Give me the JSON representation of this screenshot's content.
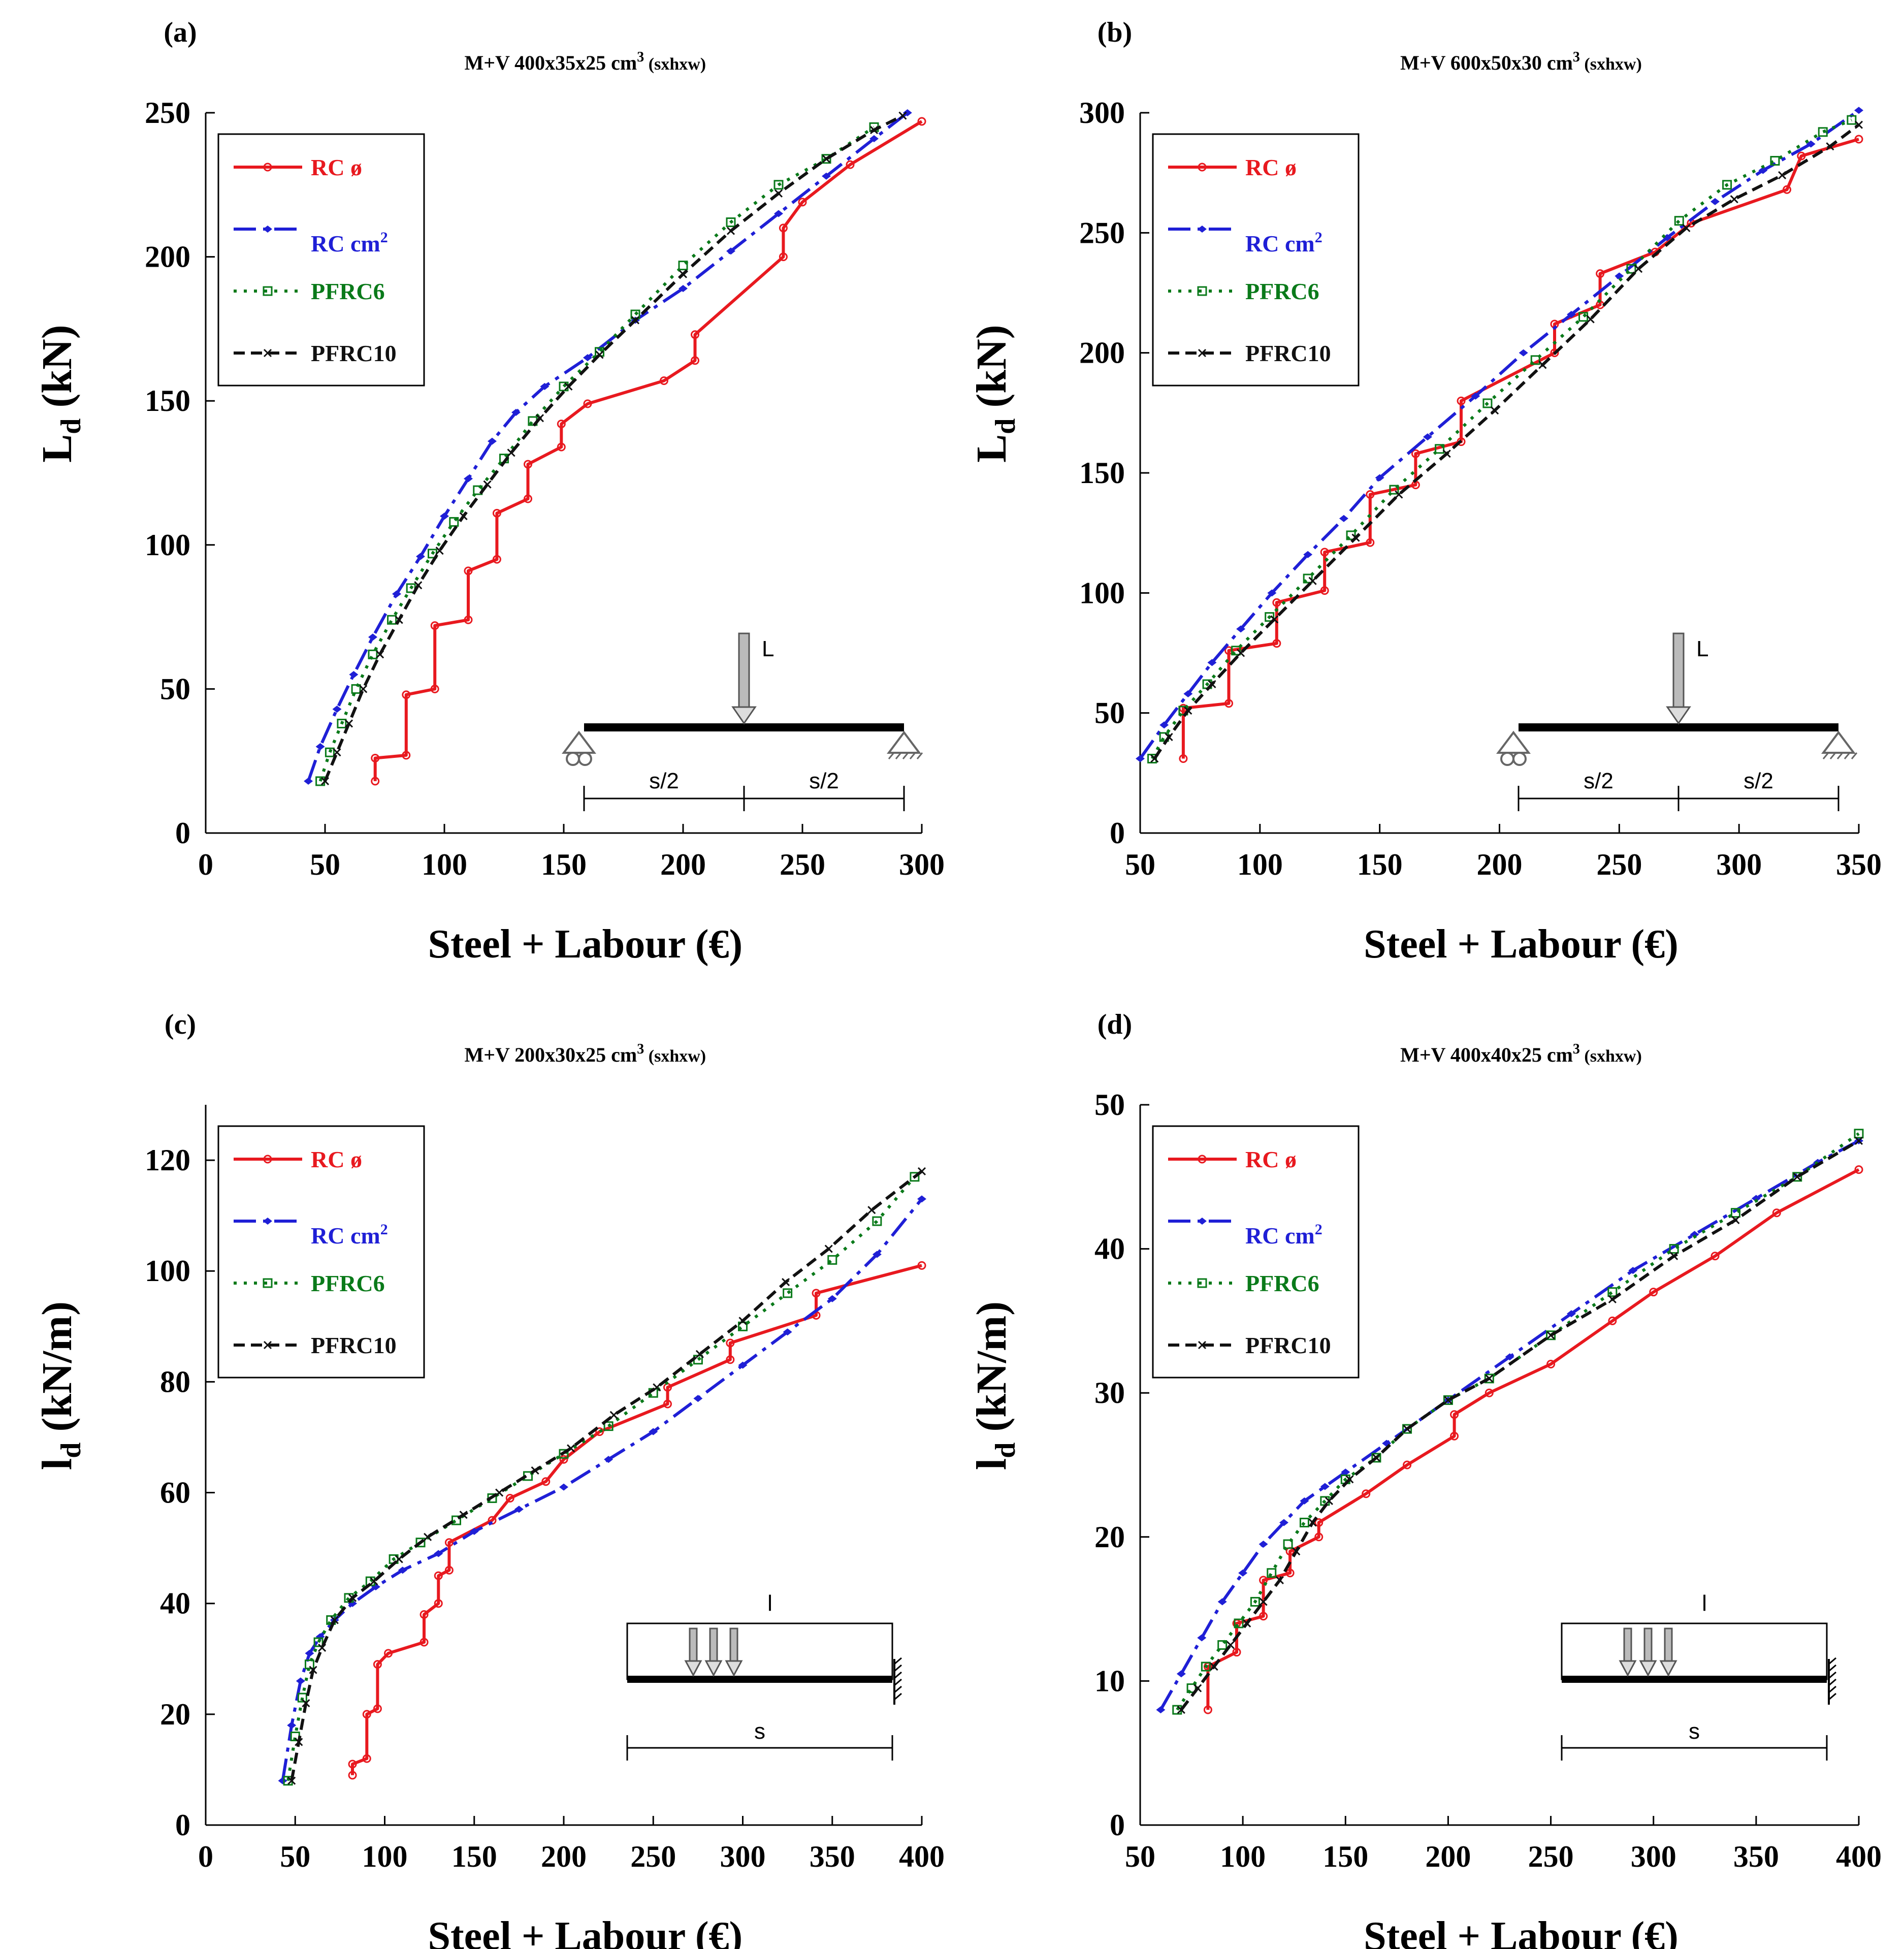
{
  "figure": {
    "x_axis_label": "Steel + Labour (€)",
    "legend_entries": [
      {
        "key": "rc_phi",
        "label": "RC ø",
        "color": "#e8191f",
        "dash": "solid",
        "marker": "circle"
      },
      {
        "key": "rc_cm2",
        "label": "RC cm²",
        "color": "#1f1fd6",
        "dash": "dashdot",
        "marker": "diamond"
      },
      {
        "key": "pfrc6",
        "label": "PFRC6",
        "color": "#0a7a1a",
        "dash": "dotted",
        "marker": "square"
      },
      {
        "key": "pfrc10",
        "label": "PFRC10",
        "color": "#111111",
        "dash": "dashed",
        "marker": "cross"
      }
    ],
    "scheme_labels": {
      "point_load": "L",
      "distributed_load": "l",
      "half_span": "s/2",
      "span": "s"
    }
  },
  "chart_data": [
    {
      "type": "line",
      "panel": "(a)",
      "title": "M+V 400x35x25 cm³ (sxhxw)",
      "xlabel": "Steel + Labour (€)",
      "ylabel": "Ld (kN)",
      "xlim": [
        0,
        300
      ],
      "ylim": [
        0,
        250
      ],
      "xticks": [
        0,
        50,
        100,
        150,
        200,
        250,
        300
      ],
      "yticks": [
        0,
        50,
        100,
        150,
        200,
        250
      ],
      "scheme": "simply_supported_point_load",
      "series": [
        {
          "name": "RC ø",
          "x": [
            71,
            71,
            84,
            84,
            96,
            96,
            110,
            110,
            122,
            122,
            135,
            135,
            149,
            149,
            160,
            192,
            205,
            205,
            242,
            242,
            250,
            270,
            300
          ],
          "y": [
            18,
            26,
            27,
            48,
            50,
            72,
            74,
            91,
            95,
            111,
            116,
            128,
            134,
            142,
            149,
            157,
            164,
            173,
            200,
            210,
            219,
            232,
            247
          ]
        },
        {
          "name": "RC cm²",
          "x": [
            43,
            48,
            55,
            62,
            70,
            80,
            90,
            100,
            110,
            120,
            130,
            142,
            160,
            180,
            200,
            220,
            240,
            260,
            280,
            294
          ],
          "y": [
            18,
            30,
            43,
            55,
            68,
            83,
            96,
            110,
            123,
            136,
            146,
            155,
            165,
            178,
            189,
            202,
            215,
            228,
            241,
            250
          ]
        },
        {
          "name": "PFRC6",
          "x": [
            48,
            52,
            57,
            63,
            70,
            78,
            86,
            95,
            104,
            114,
            125,
            137,
            150,
            165,
            180,
            200,
            220,
            240,
            260,
            280
          ],
          "y": [
            18,
            28,
            38,
            50,
            62,
            74,
            85,
            97,
            108,
            119,
            130,
            143,
            155,
            167,
            180,
            197,
            212,
            225,
            234,
            245
          ]
        },
        {
          "name": "PFRC10",
          "x": [
            50,
            55,
            60,
            66,
            73,
            81,
            89,
            98,
            108,
            118,
            128,
            140,
            152,
            165,
            180,
            200,
            220,
            240,
            260,
            280,
            292
          ],
          "y": [
            18,
            28,
            38,
            50,
            62,
            74,
            86,
            98,
            110,
            121,
            132,
            144,
            155,
            166,
            178,
            194,
            209,
            222,
            234,
            244,
            249
          ]
        }
      ]
    },
    {
      "type": "line",
      "panel": "(b)",
      "title": "M+V 600x50x30 cm³ (sxhxw)",
      "xlabel": "Steel + Labour (€)",
      "ylabel": "Ld (kN)",
      "xlim": [
        50,
        350
      ],
      "ylim": [
        0,
        300
      ],
      "xticks": [
        50,
        100,
        150,
        200,
        250,
        300,
        350
      ],
      "yticks": [
        0,
        50,
        100,
        150,
        200,
        250,
        300
      ],
      "scheme": "simply_supported_point_load",
      "series": [
        {
          "name": "RC ø",
          "x": [
            68,
            68,
            87,
            87,
            107,
            107,
            127,
            127,
            146,
            146,
            165,
            165,
            184,
            184,
            223,
            223,
            242,
            242,
            265,
            280,
            320,
            326,
            350
          ],
          "y": [
            31,
            52,
            54,
            76,
            79,
            96,
            101,
            117,
            121,
            141,
            145,
            158,
            163,
            180,
            200,
            212,
            220,
            233,
            242,
            254,
            268,
            282,
            289
          ]
        },
        {
          "name": "RC cm²",
          "x": [
            50,
            60,
            70,
            80,
            92,
            105,
            120,
            135,
            150,
            170,
            190,
            210,
            230,
            250,
            270,
            290,
            310,
            330,
            350
          ],
          "y": [
            31,
            45,
            58,
            71,
            85,
            100,
            116,
            131,
            148,
            165,
            182,
            200,
            216,
            232,
            248,
            263,
            276,
            287,
            301
          ]
        },
        {
          "name": "PFRC6",
          "x": [
            55,
            60,
            68,
            78,
            90,
            104,
            120,
            138,
            156,
            175,
            195,
            215,
            235,
            255,
            275,
            295,
            315,
            335,
            347
          ],
          "y": [
            31,
            40,
            51,
            62,
            76,
            90,
            106,
            124,
            143,
            160,
            179,
            197,
            215,
            235,
            255,
            270,
            280,
            292,
            297
          ]
        },
        {
          "name": "PFRC10",
          "x": [
            56,
            62,
            70,
            80,
            92,
            106,
            122,
            140,
            158,
            178,
            198,
            218,
            238,
            258,
            278,
            298,
            318,
            338,
            350
          ],
          "y": [
            31,
            40,
            51,
            62,
            75,
            89,
            105,
            123,
            141,
            158,
            176,
            195,
            214,
            235,
            252,
            264,
            274,
            286,
            295
          ]
        }
      ]
    },
    {
      "type": "line",
      "panel": "(c)",
      "title": "M+V 200x30x25 cm³ (sxhxw)",
      "xlabel": "Steel + Labour (€)",
      "ylabel": "ld (kN/m)",
      "xlim": [
        0,
        400
      ],
      "ylim": [
        0,
        130
      ],
      "xticks": [
        0,
        50,
        100,
        150,
        200,
        250,
        300,
        350,
        400
      ],
      "yticks": [
        0,
        20,
        40,
        60,
        80,
        100,
        120
      ],
      "scheme": "cantilever_distributed_load",
      "series": [
        {
          "name": "RC ø",
          "x": [
            82,
            82,
            90,
            90,
            96,
            96,
            102,
            122,
            122,
            130,
            130,
            136,
            136,
            160,
            170,
            190,
            200,
            220,
            258,
            258,
            293,
            293,
            341,
            341,
            400
          ],
          "y": [
            9,
            11,
            12,
            20,
            21,
            29,
            31,
            33,
            38,
            40,
            45,
            46,
            51,
            55,
            59,
            62,
            66,
            71,
            76,
            79,
            84,
            87,
            92,
            96,
            101
          ]
        },
        {
          "name": "RC cm²",
          "x": [
            43,
            48,
            53,
            58,
            64,
            72,
            82,
            95,
            110,
            130,
            150,
            175,
            200,
            225,
            250,
            275,
            300,
            325,
            350,
            375,
            400
          ],
          "y": [
            8,
            18,
            26,
            31,
            34,
            37,
            40,
            43,
            46,
            49,
            53,
            57,
            61,
            66,
            71,
            77,
            83,
            89,
            95,
            103,
            113
          ]
        },
        {
          "name": "PFRC6",
          "x": [
            46,
            50,
            54,
            58,
            63,
            70,
            80,
            92,
            105,
            120,
            140,
            160,
            180,
            200,
            225,
            250,
            275,
            300,
            325,
            350,
            375,
            396
          ],
          "y": [
            8,
            16,
            23,
            29,
            33,
            37,
            41,
            44,
            48,
            51,
            55,
            59,
            63,
            67,
            72,
            78,
            84,
            90,
            96,
            102,
            109,
            117
          ]
        },
        {
          "name": "PFRC10",
          "x": [
            48,
            52,
            56,
            60,
            65,
            72,
            82,
            94,
            108,
            124,
            144,
            164,
            184,
            204,
            228,
            252,
            276,
            300,
            324,
            348,
            372,
            400
          ],
          "y": [
            8,
            15,
            22,
            28,
            32,
            37,
            41,
            44,
            48,
            52,
            56,
            60,
            64,
            68,
            74,
            79,
            85,
            91,
            98,
            104,
            111,
            118
          ]
        }
      ]
    },
    {
      "type": "line",
      "panel": "(d)",
      "title": "M+V 400x40x25 cm³ (sxhxw)",
      "xlabel": "Steel + Labour (€)",
      "ylabel": "ld (kN/m)",
      "xlim": [
        50,
        400
      ],
      "ylim": [
        0,
        50
      ],
      "xticks": [
        50,
        100,
        150,
        200,
        250,
        300,
        350,
        400
      ],
      "yticks": [
        0,
        10,
        20,
        30,
        40,
        50
      ],
      "scheme": "cantilever_distributed_load",
      "series": [
        {
          "name": "RC ø",
          "x": [
            83,
            83,
            97,
            97,
            110,
            110,
            123,
            123,
            137,
            137,
            160,
            180,
            203,
            203,
            220,
            250,
            280,
            300,
            330,
            360,
            400
          ],
          "y": [
            8,
            11,
            12,
            14,
            14.5,
            17,
            17.5,
            19,
            20,
            21,
            23,
            25,
            27,
            28.5,
            30,
            32,
            35,
            37,
            39.5,
            42.5,
            45.5
          ]
        },
        {
          "name": "RC cm²",
          "x": [
            60,
            70,
            80,
            90,
            100,
            110,
            120,
            130,
            140,
            150,
            170,
            200,
            230,
            260,
            290,
            320,
            350,
            380,
            400
          ],
          "y": [
            8,
            10.5,
            13,
            15.5,
            17.5,
            19.5,
            21,
            22.5,
            23.5,
            24.5,
            26.5,
            29.5,
            32.5,
            35.5,
            38.5,
            41,
            43.5,
            46,
            47.5
          ]
        },
        {
          "name": "PFRC6",
          "x": [
            68,
            75,
            82,
            90,
            98,
            106,
            114,
            122,
            130,
            140,
            150,
            165,
            180,
            200,
            220,
            250,
            280,
            310,
            340,
            370,
            400
          ],
          "y": [
            8,
            9.5,
            11,
            12.5,
            14,
            15.5,
            17.5,
            19.5,
            21,
            22.5,
            24,
            25.5,
            27.5,
            29.5,
            31,
            34,
            37,
            40,
            42.5,
            45,
            48
          ]
        },
        {
          "name": "PFRC10",
          "x": [
            70,
            78,
            86,
            94,
            102,
            110,
            118,
            126,
            134,
            142,
            152,
            165,
            180,
            200,
            220,
            250,
            280,
            310,
            340,
            370,
            400
          ],
          "y": [
            8,
            9.5,
            11,
            12.5,
            14,
            15.5,
            17,
            19,
            21,
            22.5,
            24,
            25.5,
            27.5,
            29.5,
            31,
            34,
            36.5,
            39.5,
            42,
            45,
            47.5
          ]
        }
      ]
    }
  ]
}
